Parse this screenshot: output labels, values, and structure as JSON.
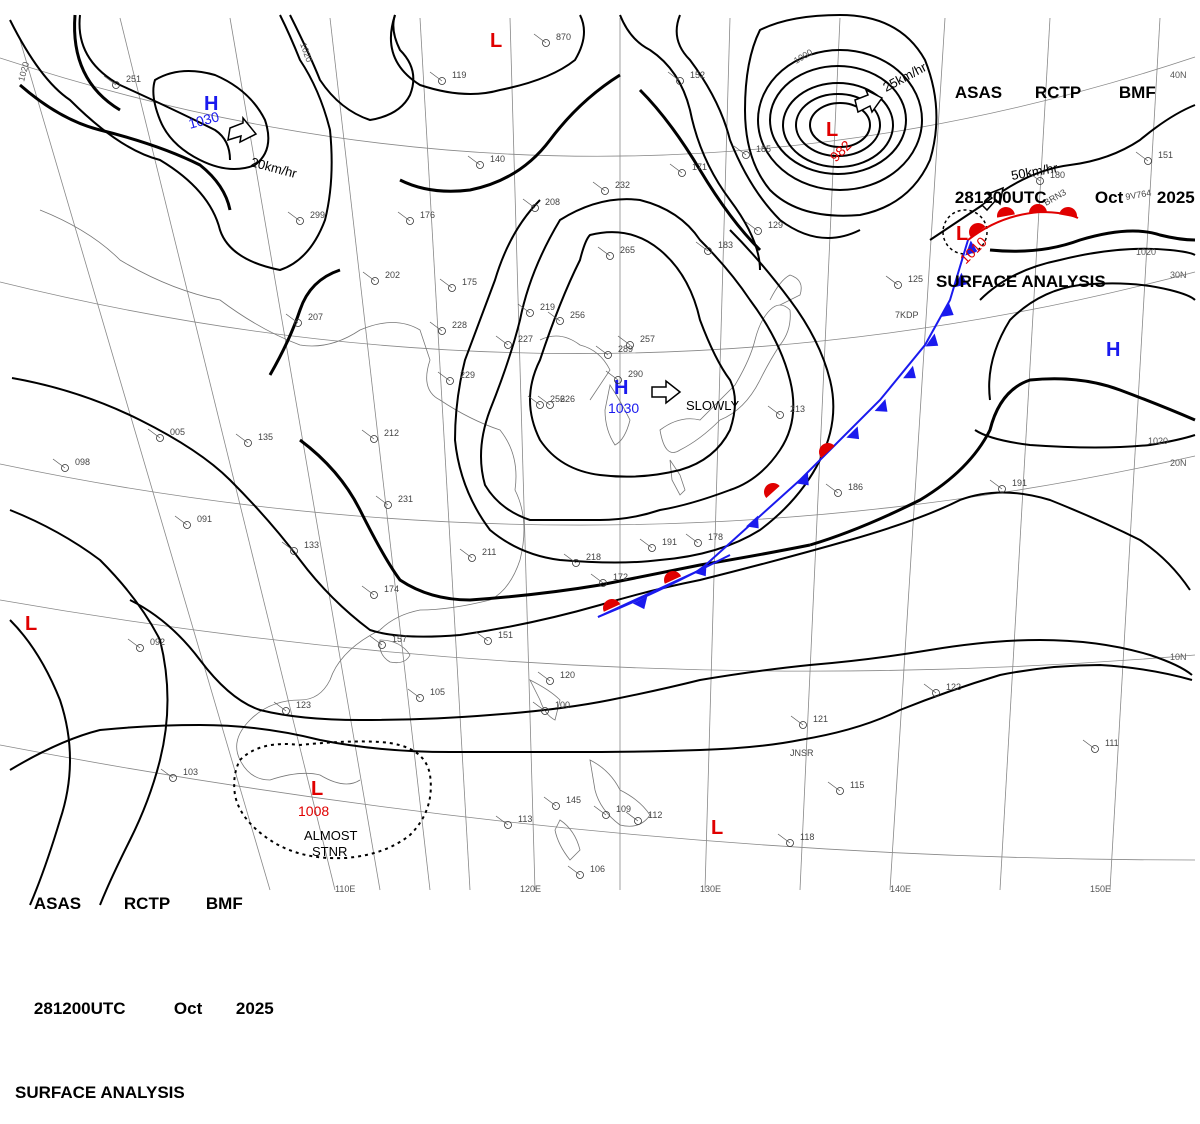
{
  "header": {
    "line1": [
      "ASAS",
      "RCTP",
      "BMF"
    ],
    "line2": [
      "281200UTC",
      "Oct",
      "2025"
    ],
    "line3": "SURFACE ANALYSIS"
  },
  "latitude_labels": [
    "40N",
    "30N",
    "20N",
    "10N"
  ],
  "longitude_labels": [
    "110E",
    "120E",
    "130E",
    "140E",
    "150E"
  ],
  "isobar_labels": [
    "1020",
    "1020",
    "1000",
    "1020",
    "1020"
  ],
  "systems": [
    {
      "type": "L",
      "pressure": ""
    },
    {
      "type": "L",
      "pressure": "982"
    },
    {
      "type": "L",
      "pressure": "1010"
    },
    {
      "type": "H",
      "pressure": "1030"
    },
    {
      "type": "H",
      "pressure": "1030"
    },
    {
      "type": "H",
      "pressure": ""
    },
    {
      "type": "L",
      "pressure": ""
    },
    {
      "type": "L",
      "pressure": "1008"
    },
    {
      "type": "L",
      "pressure": ""
    }
  ],
  "motion_labels": [
    "20km/hr",
    "25km/hr",
    "50km/hr",
    "SLOWLY"
  ],
  "almost_stnr": [
    "ALMOST",
    "STNR"
  ],
  "station_labels": [
    "7KDP",
    "JNSR",
    "9V764",
    "BRN3"
  ],
  "station_values": [
    "251",
    "119",
    "140",
    "299",
    "176",
    "202",
    "175",
    "228",
    "229",
    "207",
    "212",
    "231",
    "133",
    "135",
    "005",
    "098",
    "091",
    "092",
    "226",
    "256",
    "265",
    "232",
    "208",
    "183",
    "172",
    "178",
    "191",
    "211",
    "218",
    "151",
    "105",
    "103",
    "123",
    "120",
    "100",
    "113",
    "145",
    "109",
    "112",
    "106",
    "121",
    "122",
    "115",
    "118",
    "111",
    "186",
    "191",
    "180",
    "151",
    "125",
    "129",
    "213",
    "290",
    "289",
    "256",
    "257",
    "219",
    "227",
    "157",
    "174",
    "870",
    "152",
    "171",
    "185"
  ],
  "colors": {
    "warm_front": "#e00000",
    "cold_front": "#1a1aee",
    "low_symbol": "#e00000",
    "high_symbol": "#1a1aee"
  }
}
